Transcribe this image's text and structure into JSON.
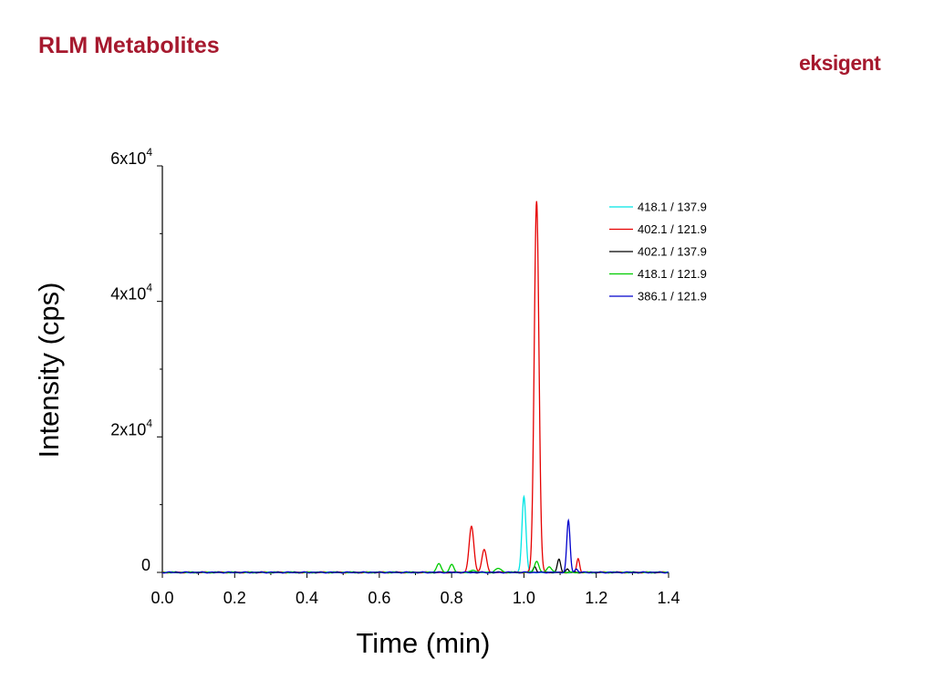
{
  "slide": {
    "title": "RLM Metabolites",
    "logo_text": "eksigent",
    "title_color": "#a6192e"
  },
  "chart_data": {
    "type": "line",
    "xlabel": "Time (min)",
    "ylabel": "Intensity (cps)",
    "xlim": [
      0.0,
      1.4
    ],
    "ylim": [
      0,
      60000
    ],
    "x_ticks": [
      "0.0",
      "0.2",
      "0.4",
      "0.6",
      "0.8",
      "1.0",
      "1.2",
      "1.4"
    ],
    "y_ticks": [
      {
        "base": "0",
        "exp": ""
      },
      {
        "base": "2x10",
        "exp": "4"
      },
      {
        "base": "4x10",
        "exp": "4"
      },
      {
        "base": "6x10",
        "exp": "4"
      }
    ],
    "grid": false,
    "legend_position": "top-right",
    "series": [
      {
        "name": "418.1 / 137.9",
        "color": "#00e5e5",
        "peaks": [
          {
            "x": 1.0,
            "y": 11200,
            "w": 0.0055
          }
        ]
      },
      {
        "name": "402.1 / 121.9",
        "color": "#e60000",
        "peaks": [
          {
            "x": 0.855,
            "y": 6800,
            "w": 0.0065
          },
          {
            "x": 0.89,
            "y": 3300,
            "w": 0.0065
          },
          {
            "x": 1.035,
            "y": 54800,
            "w": 0.0065
          },
          {
            "x": 1.15,
            "y": 2000,
            "w": 0.004
          }
        ]
      },
      {
        "name": "402.1 / 137.9",
        "color": "#000000",
        "peaks": [
          {
            "x": 1.03,
            "y": 900,
            "w": 0.004
          },
          {
            "x": 1.097,
            "y": 1900,
            "w": 0.0045
          },
          {
            "x": 1.12,
            "y": 500,
            "w": 0.004
          }
        ]
      },
      {
        "name": "418.1 / 121.9",
        "color": "#00cc00",
        "peaks": [
          {
            "x": 0.765,
            "y": 1300,
            "w": 0.006
          },
          {
            "x": 0.8,
            "y": 1100,
            "w": 0.006
          },
          {
            "x": 0.86,
            "y": 400,
            "w": 0.006
          },
          {
            "x": 0.93,
            "y": 600,
            "w": 0.008
          },
          {
            "x": 1.035,
            "y": 1600,
            "w": 0.006
          },
          {
            "x": 1.07,
            "y": 900,
            "w": 0.006
          }
        ]
      },
      {
        "name": "386.1 / 121.9",
        "color": "#0000cc",
        "peaks": [
          {
            "x": 1.123,
            "y": 7600,
            "w": 0.0045
          },
          {
            "x": 1.145,
            "y": 500,
            "w": 0.004
          }
        ]
      }
    ]
  }
}
